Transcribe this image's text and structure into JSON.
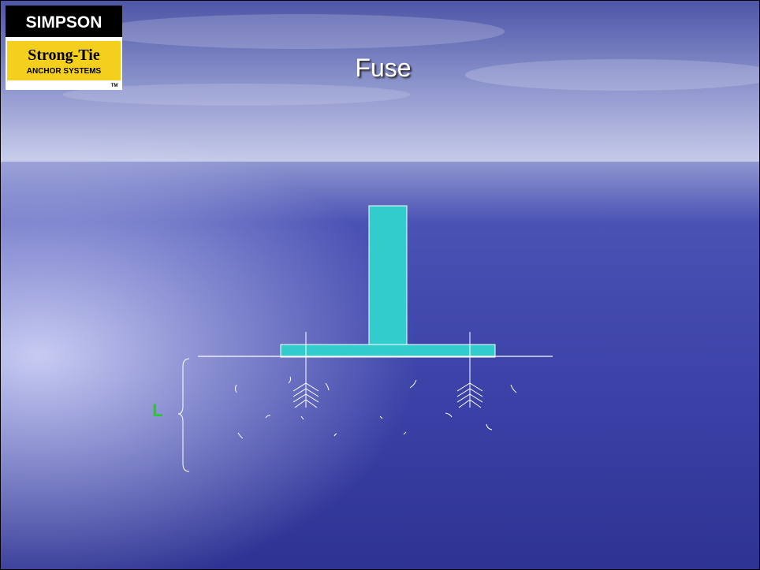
{
  "logo": {
    "brand": "SIMPSON",
    "product": "Strong-Tie",
    "tagline": "ANCHOR SYSTEMS",
    "trademark": "TM"
  },
  "title": "Fuse",
  "diagram": {
    "dimension_label": "L"
  }
}
